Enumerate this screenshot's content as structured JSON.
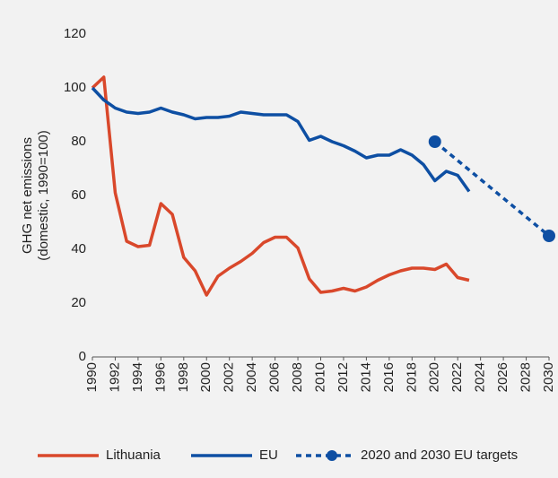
{
  "chart_data": {
    "type": "line",
    "ylabel": [
      "GHG net emissions",
      "(domestic, 1990=100)"
    ],
    "xlim": [
      1990,
      2030
    ],
    "xticks": [
      1990,
      1992,
      1994,
      1996,
      1998,
      2000,
      2002,
      2004,
      2006,
      2008,
      2010,
      2012,
      2014,
      2016,
      2018,
      2020,
      2022,
      2024,
      2026,
      2028,
      2030
    ],
    "ylim": [
      0,
      120
    ],
    "yticks": [
      0,
      20,
      40,
      60,
      80,
      100,
      120
    ],
    "series": [
      {
        "name": "Lithuania",
        "color": "#d9482b",
        "x": [
          1990,
          1991,
          1992,
          1993,
          1994,
          1995,
          1996,
          1997,
          1998,
          1999,
          2000,
          2001,
          2002,
          2003,
          2004,
          2005,
          2006,
          2007,
          2008,
          2009,
          2010,
          2011,
          2012,
          2013,
          2014,
          2015,
          2016,
          2017,
          2018,
          2019,
          2020,
          2021,
          2022,
          2023
        ],
        "values": [
          100,
          104,
          61,
          43,
          41,
          41.5,
          57,
          53,
          37,
          32,
          23,
          30,
          33,
          35.5,
          38.5,
          42.5,
          44.5,
          44.5,
          40.5,
          29,
          24,
          24.5,
          25.5,
          24.5,
          26,
          28.5,
          30.5,
          32,
          33,
          33,
          32.5,
          34.5,
          29.5,
          28.5
        ]
      },
      {
        "name": "EU",
        "color": "#0e4fa3",
        "x": [
          1990,
          1991,
          1992,
          1993,
          1994,
          1995,
          1996,
          1997,
          1998,
          1999,
          2000,
          2001,
          2002,
          2003,
          2004,
          2005,
          2006,
          2007,
          2008,
          2009,
          2010,
          2011,
          2012,
          2013,
          2014,
          2015,
          2016,
          2017,
          2018,
          2019,
          2020,
          2021,
          2022,
          2023
        ],
        "values": [
          100,
          95.5,
          92.5,
          91,
          90.5,
          91,
          92.5,
          91,
          90,
          88.5,
          89,
          89,
          89.5,
          91,
          90.5,
          90,
          90,
          90,
          87.5,
          80.5,
          82,
          80,
          78.5,
          76.5,
          74,
          75,
          75,
          77,
          75,
          71.5,
          65.5,
          69,
          67.5,
          61.5
        ]
      },
      {
        "name": "2020 and 2030 EU targets",
        "color": "#0e4fa3",
        "dashed": true,
        "markers": true,
        "x": [
          2020,
          2030
        ],
        "values": [
          80,
          45
        ]
      }
    ]
  }
}
